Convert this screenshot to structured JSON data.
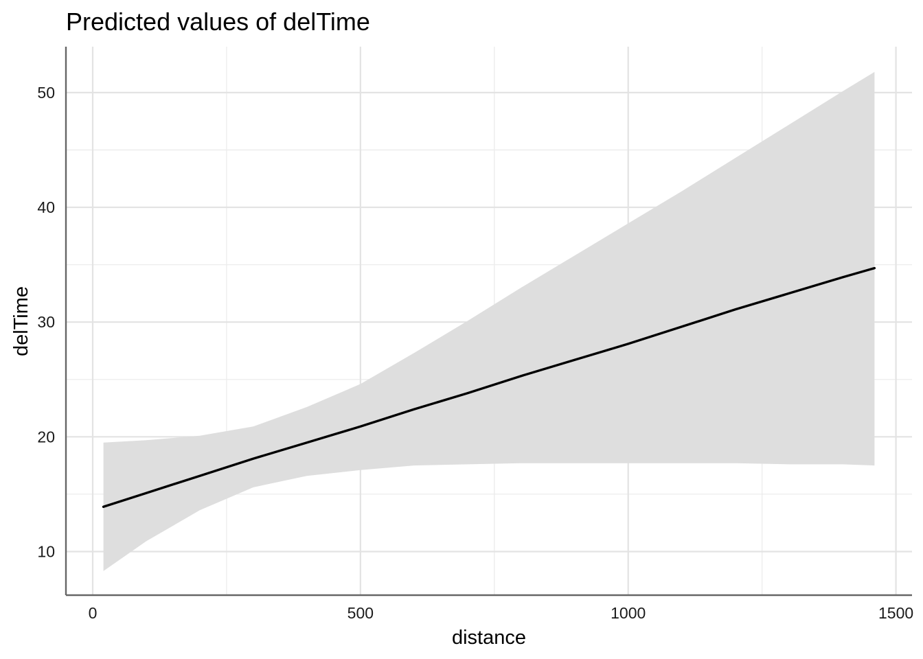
{
  "chart_data": {
    "type": "line",
    "title": "Predicted values of delTime",
    "xlabel": "distance",
    "ylabel": "delTime",
    "xlim": [
      -50,
      1530
    ],
    "ylim": [
      6.2,
      54.0
    ],
    "x_ticks": [
      0,
      500,
      1000,
      1500
    ],
    "y_ticks": [
      10,
      20,
      30,
      40,
      50
    ],
    "x_minor_ticks": [
      250,
      750,
      1250
    ],
    "y_minor_ticks": [
      15,
      25,
      35,
      45
    ],
    "grid": true,
    "legend": "none",
    "colors": {
      "line": "#000000",
      "ribbon": "#dedede",
      "grid": "#e3e3e3",
      "axis": "#666666"
    },
    "series": [
      {
        "x": [
          20,
          100,
          200,
          300,
          400,
          500,
          600,
          700,
          800,
          900,
          1000,
          1100,
          1200,
          1300,
          1400,
          1460
        ],
        "y": [
          13.9,
          15.1,
          16.6,
          18.1,
          19.5,
          20.9,
          22.4,
          23.8,
          25.3,
          26.7,
          28.1,
          29.6,
          31.1,
          32.5,
          33.9,
          34.7
        ],
        "ci_low": [
          8.3,
          10.9,
          13.6,
          15.6,
          16.6,
          17.1,
          17.5,
          17.6,
          17.7,
          17.7,
          17.7,
          17.7,
          17.7,
          17.6,
          17.6,
          17.5
        ],
        "ci_high": [
          19.5,
          19.7,
          20.1,
          20.9,
          22.6,
          24.6,
          27.3,
          30.1,
          33.0,
          35.8,
          38.6,
          41.4,
          44.3,
          47.2,
          50.1,
          51.8
        ]
      }
    ]
  }
}
